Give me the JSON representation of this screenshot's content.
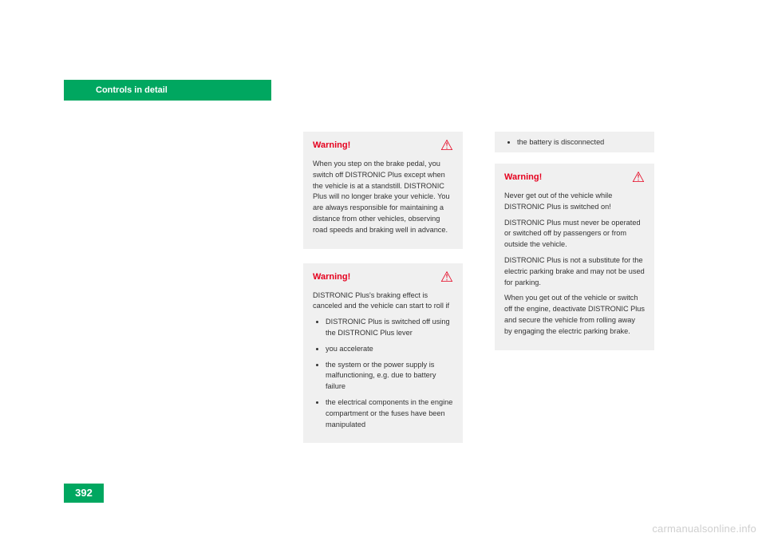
{
  "colors": {
    "brand_green": "#00a760",
    "warning_red": "#e5001e",
    "box_bg": "#f0f0f0",
    "text": "#333333",
    "watermark": "#cfcfcf",
    "page_bg": "#ffffff"
  },
  "header": {
    "section_title": "Controls in detail"
  },
  "page_number": "392",
  "middle_column": {
    "warning1": {
      "title": "Warning!",
      "body": "When you step on the brake pedal, you switch off DISTRONIC Plus except when the vehicle is at a standstill. DISTRONIC Plus will no longer brake your vehicle. You are always responsible for maintaining a distance from other vehicles, observing road speeds and braking well in advance."
    },
    "warning2": {
      "title": "Warning!",
      "intro": "DISTRONIC Plus's braking effect is canceled and the vehicle can start to roll if",
      "bullets": [
        "DISTRONIC Plus is switched off using the DISTRONIC Plus lever",
        "you accelerate",
        "the system or the power supply is malfunctioning, e.g. due to battery failure",
        "the electrical components in the engine compartment or the fuses have been manipulated"
      ]
    }
  },
  "right_column": {
    "top_bullet": "the battery is disconnected",
    "warning": {
      "title": "Warning!",
      "p1": "Never get out of the vehicle while DISTRONIC Plus is switched on!",
      "p2": "DISTRONIC Plus must never be operated or switched off by passengers or from outside the vehicle.",
      "p3": "DISTRONIC Plus is not a substitute for the electric parking brake and may not be used for parking.",
      "p4": "When you get out of the vehicle or switch off the engine, deactivate DISTRONIC Plus and secure the vehicle from rolling away by engaging the electric parking brake."
    }
  },
  "watermark": "carmanualsonline.info"
}
